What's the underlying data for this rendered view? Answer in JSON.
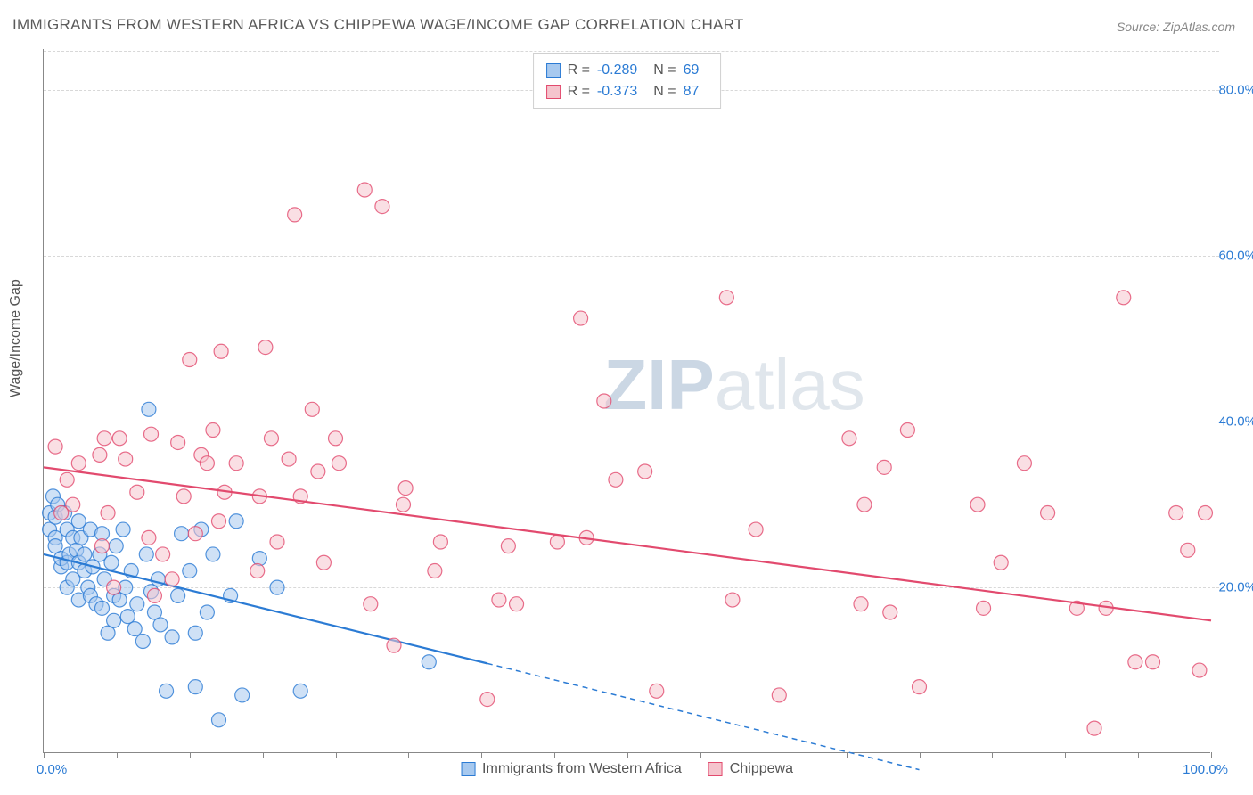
{
  "title": "IMMIGRANTS FROM WESTERN AFRICA VS CHIPPEWA WAGE/INCOME GAP CORRELATION CHART",
  "source": "Source: ZipAtlas.com",
  "ylabel": "Wage/Income Gap",
  "watermark": {
    "zip": "ZIP",
    "atlas": "atlas"
  },
  "chart": {
    "type": "scatter",
    "background_color": "#ffffff",
    "grid_color": "#d8d8d8",
    "xlim": [
      0,
      100
    ],
    "ylim": [
      0,
      85
    ],
    "xticks": [
      0,
      100
    ],
    "xtick_labels": [
      "0.0%",
      "100.0%"
    ],
    "ytick_positions": [
      20,
      40,
      60,
      80
    ],
    "ytick_labels": [
      "20.0%",
      "40.0%",
      "60.0%",
      "80.0%"
    ],
    "xtick_marks": [
      0,
      6.25,
      12.5,
      18.75,
      25,
      31.25,
      37.5,
      43.75,
      50,
      56.25,
      62.5,
      68.75,
      75,
      81.25,
      87.5,
      93.75,
      100
    ],
    "tick_label_color": "#2b7bd4",
    "axis_color": "#888888",
    "marker_radius": 8,
    "marker_opacity": 0.55,
    "line_width": 2.2,
    "series": [
      {
        "name": "Immigrants from Western Africa",
        "label": "Immigrants from Western Africa",
        "color_fill": "#a7c9ef",
        "color_stroke": "#2b7bd4",
        "R": "-0.289",
        "N": "69",
        "regression": {
          "x1": 0,
          "y1": 24,
          "x2": 75,
          "y2": -2,
          "solid_until_x": 38
        },
        "points": [
          [
            0.5,
            29
          ],
          [
            0.5,
            27
          ],
          [
            0.8,
            31
          ],
          [
            1,
            28.5
          ],
          [
            1,
            26
          ],
          [
            1,
            25
          ],
          [
            1.2,
            30
          ],
          [
            1.5,
            22.5
          ],
          [
            1.5,
            23.5
          ],
          [
            1.8,
            29
          ],
          [
            2,
            27
          ],
          [
            2,
            20
          ],
          [
            2,
            23
          ],
          [
            2.2,
            24
          ],
          [
            2.5,
            26
          ],
          [
            2.5,
            21
          ],
          [
            2.8,
            24.5
          ],
          [
            3,
            28
          ],
          [
            3,
            23
          ],
          [
            3,
            18.5
          ],
          [
            3.2,
            26
          ],
          [
            3.5,
            22
          ],
          [
            3.5,
            24
          ],
          [
            3.8,
            20
          ],
          [
            4,
            27
          ],
          [
            4,
            19
          ],
          [
            4.2,
            22.5
          ],
          [
            4.5,
            18
          ],
          [
            4.8,
            24
          ],
          [
            5,
            26.5
          ],
          [
            5,
            17.5
          ],
          [
            5.2,
            21
          ],
          [
            5.5,
            14.5
          ],
          [
            5.8,
            23
          ],
          [
            6,
            19
          ],
          [
            6,
            16
          ],
          [
            6.2,
            25
          ],
          [
            6.5,
            18.5
          ],
          [
            6.8,
            27
          ],
          [
            7,
            20
          ],
          [
            7.2,
            16.5
          ],
          [
            7.5,
            22
          ],
          [
            7.8,
            15
          ],
          [
            8,
            18
          ],
          [
            8.5,
            13.5
          ],
          [
            8.8,
            24
          ],
          [
            9,
            41.5
          ],
          [
            9.2,
            19.5
          ],
          [
            9.5,
            17
          ],
          [
            9.8,
            21
          ],
          [
            10,
            15.5
          ],
          [
            10.5,
            7.5
          ],
          [
            11,
            14
          ],
          [
            11.5,
            19
          ],
          [
            11.8,
            26.5
          ],
          [
            12.5,
            22
          ],
          [
            13,
            14.5
          ],
          [
            13,
            8
          ],
          [
            13.5,
            27
          ],
          [
            14.5,
            24
          ],
          [
            14,
            17
          ],
          [
            15,
            4
          ],
          [
            16,
            19
          ],
          [
            16.5,
            28
          ],
          [
            17,
            7
          ],
          [
            18.5,
            23.5
          ],
          [
            20,
            20
          ],
          [
            22,
            7.5
          ],
          [
            33,
            11
          ]
        ]
      },
      {
        "name": "Chippewa",
        "label": "Chippewa",
        "color_fill": "#f5c4cd",
        "color_stroke": "#e24a6e",
        "R": "-0.373",
        "N": "87",
        "regression": {
          "x1": 0,
          "y1": 34.5,
          "x2": 100,
          "y2": 16,
          "solid_until_x": 100
        },
        "points": [
          [
            1,
            37
          ],
          [
            1.5,
            29
          ],
          [
            2,
            33
          ],
          [
            2.5,
            30
          ],
          [
            3,
            35
          ],
          [
            4.8,
            36
          ],
          [
            5,
            25
          ],
          [
            5.2,
            38
          ],
          [
            5.5,
            29
          ],
          [
            6,
            20
          ],
          [
            6.5,
            38
          ],
          [
            7,
            35.5
          ],
          [
            8,
            31.5
          ],
          [
            9,
            26
          ],
          [
            9.2,
            38.5
          ],
          [
            9.5,
            19
          ],
          [
            10.2,
            24
          ],
          [
            11,
            21
          ],
          [
            11.5,
            37.5
          ],
          [
            12,
            31
          ],
          [
            12.5,
            47.5
          ],
          [
            13,
            26.5
          ],
          [
            13.5,
            36
          ],
          [
            14,
            35
          ],
          [
            14.5,
            39
          ],
          [
            15,
            28
          ],
          [
            15.2,
            48.5
          ],
          [
            15.5,
            31.5
          ],
          [
            16.5,
            35
          ],
          [
            18.3,
            22
          ],
          [
            18.5,
            31
          ],
          [
            19,
            49
          ],
          [
            19.5,
            38
          ],
          [
            20,
            25.5
          ],
          [
            21,
            35.5
          ],
          [
            21.5,
            65
          ],
          [
            22,
            31
          ],
          [
            23,
            41.5
          ],
          [
            23.5,
            34
          ],
          [
            24,
            23
          ],
          [
            25,
            38
          ],
          [
            25.3,
            35
          ],
          [
            27.5,
            68
          ],
          [
            28,
            18
          ],
          [
            29,
            66
          ],
          [
            30.8,
            30
          ],
          [
            30,
            13
          ],
          [
            31,
            32
          ],
          [
            33.5,
            22
          ],
          [
            34,
            25.5
          ],
          [
            38,
            6.5
          ],
          [
            39,
            18.5
          ],
          [
            39.8,
            25
          ],
          [
            40.5,
            18
          ],
          [
            44,
            25.5
          ],
          [
            46,
            52.5
          ],
          [
            46.5,
            26
          ],
          [
            48,
            42.5
          ],
          [
            49,
            33
          ],
          [
            51.5,
            34
          ],
          [
            52.5,
            7.5
          ],
          [
            58.5,
            55
          ],
          [
            59,
            18.5
          ],
          [
            61,
            27
          ],
          [
            63,
            7
          ],
          [
            69,
            38
          ],
          [
            70,
            18
          ],
          [
            70.3,
            30
          ],
          [
            72,
            34.5
          ],
          [
            72.5,
            17
          ],
          [
            74,
            39
          ],
          [
            75,
            8
          ],
          [
            80,
            30
          ],
          [
            80.5,
            17.5
          ],
          [
            82,
            23
          ],
          [
            84,
            35
          ],
          [
            86,
            29
          ],
          [
            88.5,
            17.5
          ],
          [
            90,
            3
          ],
          [
            91,
            17.5
          ],
          [
            92.5,
            55
          ],
          [
            93.5,
            11
          ],
          [
            95,
            11
          ],
          [
            97,
            29
          ],
          [
            98,
            24.5
          ],
          [
            99,
            10
          ],
          [
            99.5,
            29
          ]
        ]
      }
    ]
  },
  "legend_bottom": [
    {
      "swatch_fill": "#a7c9ef",
      "swatch_stroke": "#2b7bd4",
      "label": "Immigrants from Western Africa"
    },
    {
      "swatch_fill": "#f5c4cd",
      "swatch_stroke": "#e24a6e",
      "label": "Chippewa"
    }
  ]
}
